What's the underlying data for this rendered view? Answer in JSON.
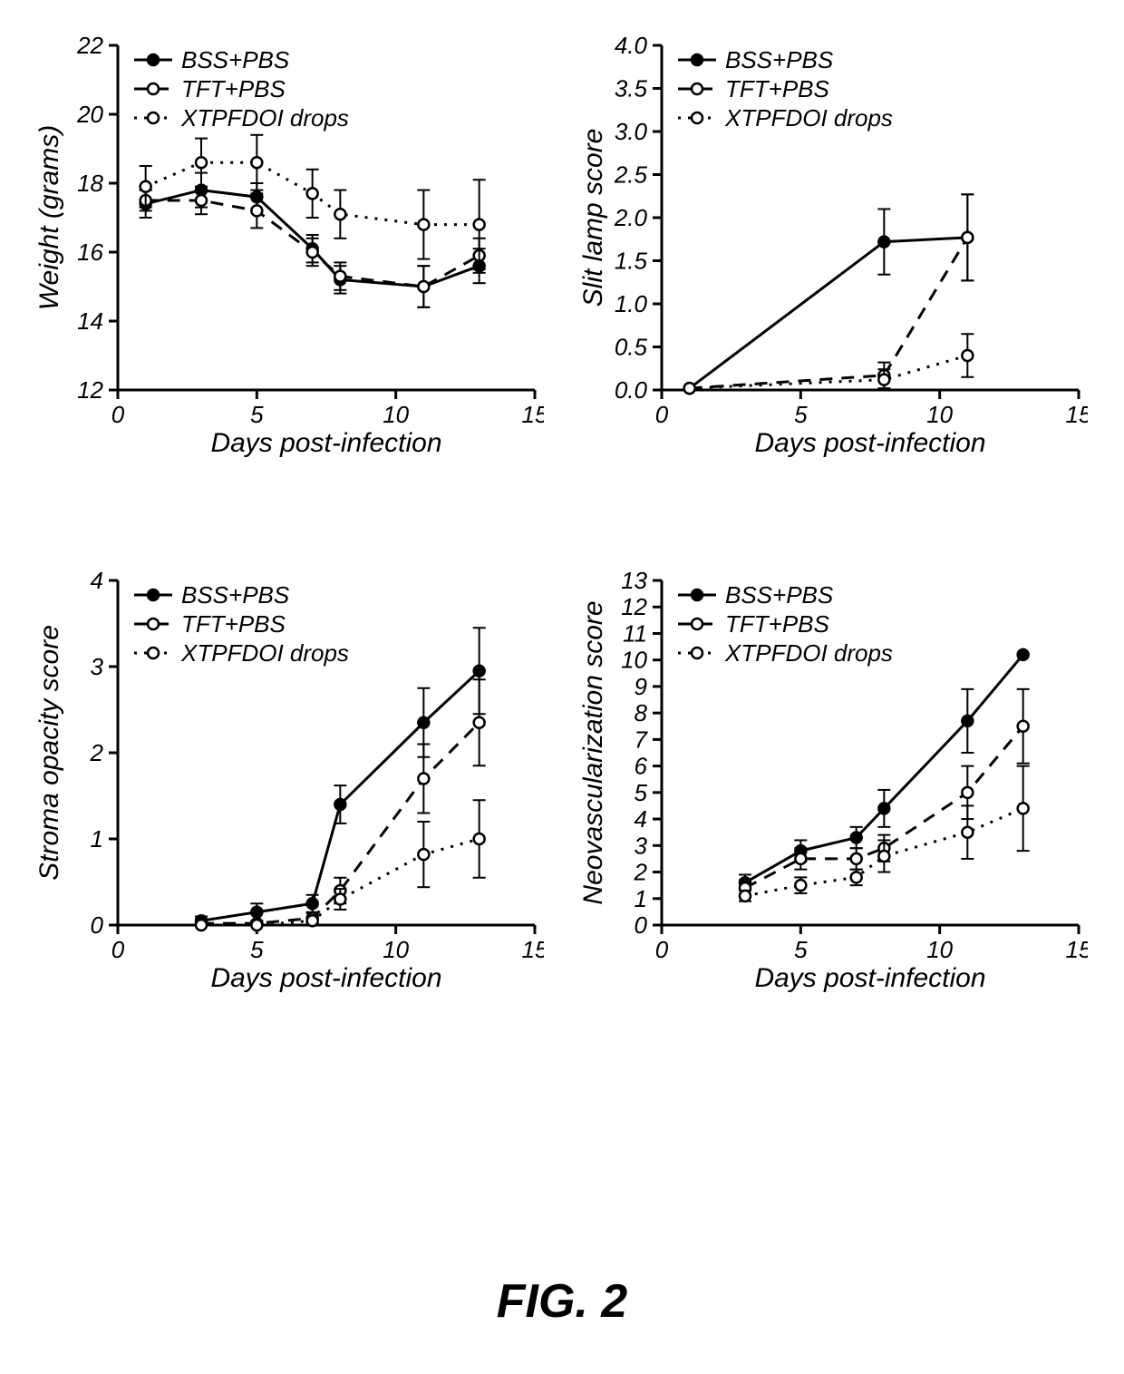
{
  "caption": "FIG. 2",
  "colors": {
    "axis": "#000000",
    "tick": "#000000",
    "series_fill_solid": "#000000",
    "series_fill_open": "#ffffff",
    "series_stroke": "#000000",
    "background": "#ffffff"
  },
  "series_legend": [
    {
      "key": "bss",
      "label": "BSS+PBS",
      "marker": "circle",
      "fill": "solid",
      "dash": "solid"
    },
    {
      "key": "tft",
      "label": "TFT+PBS",
      "marker": "circle",
      "fill": "open",
      "dash": "dash"
    },
    {
      "key": "xtp",
      "label": "XTPFDOI drops",
      "marker": "circle",
      "fill": "open",
      "dash": "dot"
    }
  ],
  "panels": [
    {
      "id": "weight",
      "type": "line",
      "x_label": "Days post-infection",
      "y_label": "Weight (grams)",
      "xlim": [
        0,
        15
      ],
      "x_ticks": [
        0,
        5,
        10,
        15
      ],
      "ylim": [
        12,
        22
      ],
      "y_ticks": [
        12,
        14,
        16,
        18,
        20,
        22
      ],
      "legend_pos": "top-inside",
      "marker_r": 6,
      "line_w": 3,
      "data": {
        "x": [
          1,
          3,
          5,
          7,
          8,
          11,
          13
        ],
        "bss": {
          "y": [
            17.4,
            17.8,
            17.6,
            16.1,
            15.2,
            15.0,
            15.6
          ],
          "err": [
            0.4,
            0.5,
            0.4,
            0.4,
            0.4,
            0.6,
            0.5
          ]
        },
        "tft": {
          "y": [
            17.5,
            17.5,
            17.2,
            16.0,
            15.3,
            15.0,
            15.9
          ],
          "err": [
            0.3,
            0.4,
            0.5,
            0.4,
            0.4,
            0.6,
            0.5
          ]
        },
        "xtp": {
          "y": [
            17.9,
            18.6,
            18.6,
            17.7,
            17.1,
            16.8,
            16.8
          ],
          "err": [
            0.6,
            0.7,
            0.8,
            0.7,
            0.7,
            1.0,
            1.3
          ]
        }
      }
    },
    {
      "id": "slit",
      "type": "line",
      "x_label": "Days post-infection",
      "y_label": "Slit lamp score",
      "xlim": [
        0,
        15
      ],
      "x_ticks": [
        0,
        5,
        10,
        15
      ],
      "ylim": [
        0,
        4.0
      ],
      "y_ticks": [
        0.0,
        0.5,
        1.0,
        1.5,
        2.0,
        2.5,
        3.0,
        3.5,
        4.0
      ],
      "legend_pos": "top-inside",
      "marker_r": 6,
      "line_w": 3,
      "data": {
        "x": [
          1,
          8,
          11
        ],
        "bss": {
          "y": [
            0.02,
            1.72,
            1.77
          ],
          "err": [
            0,
            0.38,
            0.5
          ]
        },
        "tft": {
          "y": [
            0.02,
            0.17,
            1.77
          ],
          "err": [
            0,
            0.15,
            0.5
          ]
        },
        "xtp": {
          "y": [
            0.02,
            0.12,
            0.4
          ],
          "err": [
            0,
            0.12,
            0.25
          ]
        }
      },
      "decimals": 1
    },
    {
      "id": "stroma",
      "type": "line",
      "x_label": "Days post-infection",
      "y_label": "Stroma opacity score",
      "xlim": [
        0,
        15
      ],
      "x_ticks": [
        0,
        5,
        10,
        15
      ],
      "ylim": [
        0,
        4
      ],
      "y_ticks": [
        0,
        1,
        2,
        3,
        4
      ],
      "legend_pos": "top-inside",
      "marker_r": 6,
      "line_w": 3,
      "data": {
        "x": [
          3,
          5,
          7,
          8,
          11,
          13
        ],
        "bss": {
          "y": [
            0.05,
            0.15,
            0.25,
            1.4,
            2.35,
            2.95
          ],
          "err": [
            0.05,
            0.1,
            0.1,
            0.22,
            0.4,
            0.5
          ]
        },
        "tft": {
          "y": [
            0.02,
            0.02,
            0.08,
            0.4,
            1.7,
            2.35
          ],
          "err": [
            0.02,
            0.02,
            0.06,
            0.15,
            0.4,
            0.5
          ]
        },
        "xtp": {
          "y": [
            0.0,
            0.0,
            0.05,
            0.3,
            0.82,
            1.0
          ],
          "err": [
            0.0,
            0.0,
            0.05,
            0.12,
            0.38,
            0.45
          ]
        }
      }
    },
    {
      "id": "neovasc",
      "type": "line",
      "x_label": "Days post-infection",
      "y_label": "Neovascularization score",
      "xlim": [
        0,
        15
      ],
      "x_ticks": [
        0,
        5,
        10,
        15
      ],
      "ylim": [
        0,
        13
      ],
      "y_ticks": [
        0,
        1,
        2,
        3,
        4,
        5,
        6,
        7,
        8,
        9,
        10,
        11,
        12,
        13
      ],
      "legend_pos": "top-inside",
      "marker_r": 6,
      "line_w": 3,
      "data": {
        "x": [
          3,
          5,
          7,
          8,
          11,
          13
        ],
        "bss": {
          "y": [
            1.6,
            2.8,
            3.3,
            4.4,
            7.7,
            10.2
          ],
          "err": [
            0.3,
            0.4,
            0.4,
            0.7,
            1.2,
            0.0
          ]
        },
        "tft": {
          "y": [
            1.4,
            2.5,
            2.5,
            2.9,
            5.0,
            7.5
          ],
          "err": [
            0.3,
            0.4,
            0.4,
            0.5,
            1.0,
            1.4
          ]
        },
        "xtp": {
          "y": [
            1.1,
            1.5,
            1.8,
            2.6,
            3.5,
            4.4
          ],
          "err": [
            0.2,
            0.3,
            0.3,
            0.6,
            1.0,
            1.6
          ]
        }
      }
    }
  ]
}
